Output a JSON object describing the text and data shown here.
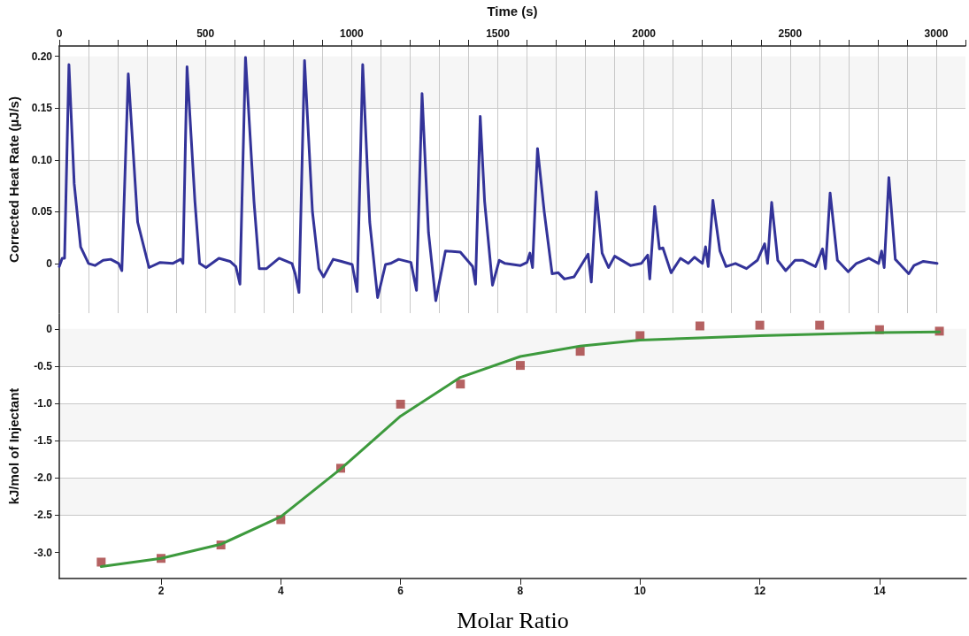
{
  "chart_data": [
    {
      "type": "line",
      "xlabel": "Time (s)",
      "ylabel": "Corrected Heat Rate (µJ/s)",
      "xlim": [
        0,
        3100
      ],
      "xticks": [
        0,
        {
          "value": 100,
          "label": null
        },
        {
          "value": 200,
          "label": null
        },
        {
          "value": 300,
          "label": null
        },
        {
          "value": 400,
          "label": null
        },
        500,
        {
          "value": 600,
          "label": null
        },
        {
          "value": 700,
          "label": null
        },
        {
          "value": 800,
          "label": null
        },
        {
          "value": 900,
          "label": null
        },
        1000,
        {
          "value": 1100,
          "label": null
        },
        {
          "value": 1200,
          "label": null
        },
        {
          "value": 1300,
          "label": null
        },
        {
          "value": 1400,
          "label": null
        },
        1500,
        {
          "value": 1600,
          "label": null
        },
        {
          "value": 1700,
          "label": null
        },
        {
          "value": 1800,
          "label": null
        },
        {
          "value": 1900,
          "label": null
        },
        2000,
        {
          "value": 2100,
          "label": null
        },
        {
          "value": 2200,
          "label": null
        },
        {
          "value": 2300,
          "label": null
        },
        {
          "value": 2400,
          "label": null
        },
        2500,
        {
          "value": 2600,
          "label": null
        },
        {
          "value": 2700,
          "label": null
        },
        {
          "value": 2800,
          "label": null
        },
        {
          "value": 2900,
          "label": null
        },
        3000,
        {
          "value": 3100,
          "label": null
        }
      ],
      "ylim": [
        -0.048,
        0.21
      ],
      "yticks": [
        0,
        {
          "value": 0.05,
          "label": "0.05"
        },
        {
          "value": 0.1,
          "label": "0.10"
        },
        {
          "value": 0.15,
          "label": "0.15"
        },
        {
          "value": 0.2,
          "label": "0.20"
        }
      ],
      "grid": true,
      "marker": "none",
      "line_style": "solid",
      "series": [
        {
          "color": "#333399",
          "x": [
            0,
            10,
            18,
            33,
            51,
            73,
            100,
            122,
            150,
            176,
            203,
            214,
            236,
            268,
            307,
            345,
            388,
            415,
            423,
            437,
            464,
            480,
            502,
            546,
            584,
            604,
            618,
            637,
            666,
            684,
            709,
            752,
            796,
            807,
            820,
            839,
            866,
            888,
            904,
            937,
            965,
            1002,
            1019,
            1038,
            1062,
            1089,
            1116,
            1133,
            1161,
            1203,
            1222,
            1241,
            1263,
            1288,
            1321,
            1372,
            1414,
            1424,
            1440,
            1455,
            1482,
            1505,
            1525,
            1578,
            1600,
            1610,
            1619,
            1636,
            1659,
            1686,
            1707,
            1728,
            1761,
            1809,
            1820,
            1837,
            1857,
            1879,
            1900,
            1954,
            1991,
            2013,
            2020,
            2037,
            2053,
            2065,
            2093,
            2125,
            2152,
            2173,
            2200,
            2211,
            2220,
            2236,
            2260,
            2281,
            2313,
            2351,
            2388,
            2413,
            2423,
            2437,
            2458,
            2485,
            2517,
            2544,
            2587,
            2611,
            2621,
            2637,
            2662,
            2699,
            2727,
            2770,
            2803,
            2813,
            2822,
            2838,
            2860,
            2906,
            2924,
            2956,
            3003
          ],
          "values": [
            -0.003,
            0.005,
            0.005,
            0.192,
            0.077,
            0.016,
            0,
            -0.002,
            0.003,
            0.004,
            0,
            -0.007,
            0.183,
            0.04,
            -0.004,
            0.001,
            0,
            0.004,
            0,
            0.19,
            0.06,
            0,
            -0.004,
            0.005,
            0.002,
            -0.003,
            -0.02,
            0.199,
            0.06,
            -0.005,
            -0.005,
            0.005,
            0,
            -0.01,
            -0.028,
            0.196,
            0.05,
            -0.005,
            -0.013,
            0.004,
            0.002,
            -0.001,
            -0.027,
            0.192,
            0.04,
            -0.033,
            -0.001,
            0,
            0.004,
            0.001,
            -0.026,
            0.164,
            0.03,
            -0.036,
            0.012,
            0.011,
            -0.003,
            -0.02,
            0.142,
            0.06,
            -0.021,
            0.003,
            0,
            -0.002,
            0.001,
            0.01,
            -0.004,
            0.111,
            0.05,
            -0.01,
            -0.009,
            -0.015,
            -0.013,
            0.009,
            -0.018,
            0.069,
            0.01,
            -0.004,
            0.007,
            -0.002,
            0,
            0.008,
            -0.015,
            0.055,
            0.014,
            0.015,
            -0.009,
            0.005,
            0,
            0.006,
            0,
            0.016,
            -0.003,
            0.061,
            0.012,
            -0.003,
            0,
            -0.005,
            0.003,
            0.019,
            0,
            0.059,
            0.003,
            -0.007,
            0.003,
            0.003,
            -0.003,
            0.014,
            -0.005,
            0.068,
            0.003,
            -0.008,
            0,
            0.005,
            0,
            0.012,
            -0.004,
            0.083,
            0.004,
            -0.01,
            -0.002,
            0.002,
            0
          ]
        }
      ]
    },
    {
      "type": "scatter",
      "xlabel": "Molar Ratio",
      "ylabel": "kJ/mol of Injectant",
      "xlim": [
        0.3,
        15.45
      ],
      "xticks": [
        2,
        4,
        6,
        8,
        10,
        12,
        14
      ],
      "ylim": [
        -3.35,
        0.2
      ],
      "yticks": [
        {
          "value": -3,
          "label": "-3.0"
        },
        -2.5,
        {
          "value": -2,
          "label": "-2.0"
        },
        -1.5,
        {
          "value": -1,
          "label": "-1.0"
        },
        -0.5,
        0
      ],
      "grid": "y",
      "series": [
        {
          "type": "scatter",
          "color": "#a23b3b",
          "marker": "square",
          "x": [
            1,
            2,
            3,
            4,
            5,
            6,
            7,
            8,
            9,
            10,
            11,
            12,
            13,
            14,
            15
          ],
          "values": [
            -3.13,
            -3.08,
            -2.9,
            -2.56,
            -1.87,
            -1.01,
            -0.74,
            -0.49,
            -0.3,
            -0.09,
            0.04,
            0.05,
            0.05,
            -0.01,
            -0.03
          ]
        },
        {
          "type": "line",
          "color": "#3d9a3d",
          "marker": "none",
          "line_style": "solid",
          "x": [
            1,
            2,
            3,
            4,
            5,
            6,
            7,
            8,
            9,
            10,
            11,
            12,
            13,
            14,
            15
          ],
          "values": [
            -3.19,
            -3.08,
            -2.89,
            -2.52,
            -1.88,
            -1.17,
            -0.65,
            -0.37,
            -0.23,
            -0.15,
            -0.12,
            -0.09,
            -0.07,
            -0.05,
            -0.04
          ]
        }
      ]
    }
  ]
}
